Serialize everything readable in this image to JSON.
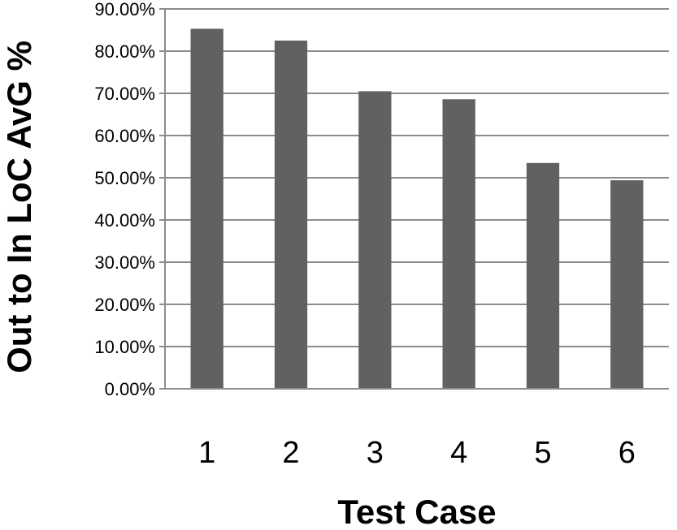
{
  "chart_data": {
    "type": "bar",
    "title": "",
    "xlabel": "Test Case",
    "ylabel": "Out to In LoC AvG %",
    "categories": [
      "1",
      "2",
      "3",
      "4",
      "5",
      "6"
    ],
    "values": [
      85.3,
      82.5,
      70.5,
      68.6,
      53.5,
      49.4
    ],
    "ylim": [
      0,
      90
    ],
    "yticks": [
      "0.00%",
      "10.00%",
      "20.00%",
      "30.00%",
      "40.00%",
      "50.00%",
      "60.00%",
      "70.00%",
      "80.00%",
      "90.00%"
    ],
    "ytick_values": [
      0,
      10,
      20,
      30,
      40,
      50,
      60,
      70,
      80,
      90
    ],
    "grid": true,
    "legend": "none",
    "colors": {
      "bar": "#616161",
      "grid": "#8c8c8c",
      "axis": "#8c8c8c"
    }
  }
}
